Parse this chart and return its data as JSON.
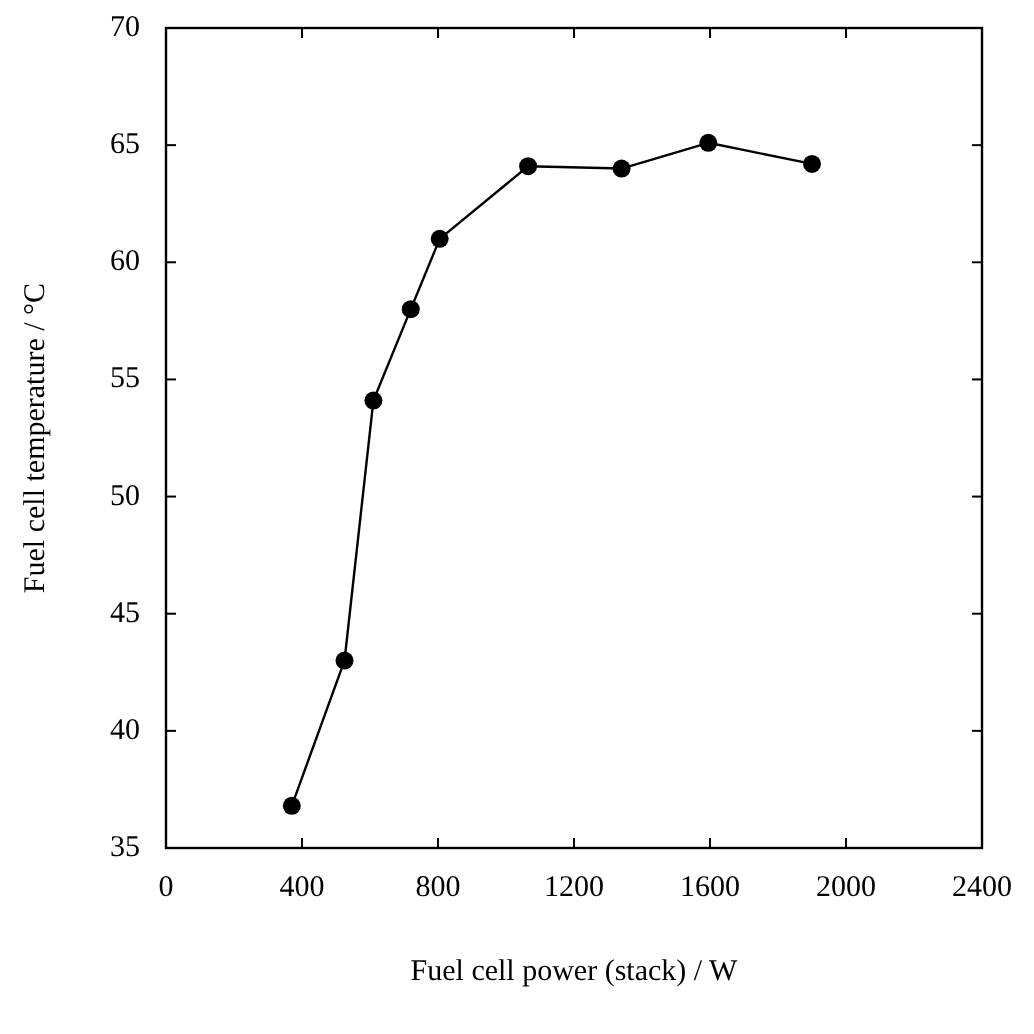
{
  "chart_data": {
    "type": "line",
    "xlabel": "Fuel cell power (stack) / W",
    "ylabel": "Fuel cell temperature / °C",
    "x": [
      370,
      525,
      610,
      720,
      805,
      1065,
      1340,
      1595,
      1900
    ],
    "series": [
      {
        "color": "#000000",
        "values": [
          36.8,
          43.0,
          54.1,
          58.0,
          61.0,
          64.1,
          64.0,
          65.1,
          64.2
        ]
      }
    ],
    "xlim": [
      0,
      2400
    ],
    "xticks": [
      0,
      400,
      800,
      1200,
      1600,
      2000,
      2400
    ],
    "ylim": [
      35,
      70
    ],
    "yticks": [
      35,
      40,
      45,
      50,
      55,
      60,
      65,
      70
    ],
    "grid": false,
    "marker": "circle",
    "line_style": "solid"
  }
}
